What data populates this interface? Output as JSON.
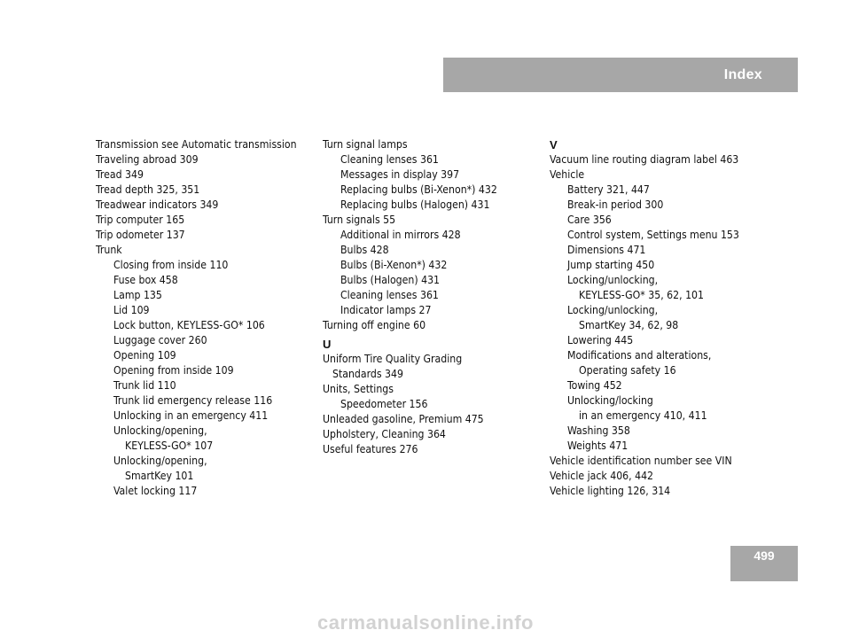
{
  "header": {
    "title": "Index"
  },
  "page_number": "499",
  "columns": [
    [
      {
        "t": "Transmission see Automatic transmission",
        "l": 0
      },
      {
        "t": "Traveling abroad    309",
        "l": 0
      },
      {
        "t": "Tread    349",
        "l": 0
      },
      {
        "t": "Tread depth    325, 351",
        "l": 0
      },
      {
        "t": "Treadwear indicators    349",
        "l": 0
      },
      {
        "t": "Trip computer    165",
        "l": 0
      },
      {
        "t": "Trip odometer    137",
        "l": 0
      },
      {
        "t": "Trunk",
        "l": 0
      },
      {
        "t": "Closing from inside    110",
        "l": 1
      },
      {
        "t": "Fuse box    458",
        "l": 1
      },
      {
        "t": "Lamp    135",
        "l": 1
      },
      {
        "t": "Lid    109",
        "l": 1
      },
      {
        "t": "Lock button, KEYLESS-GO*    106",
        "l": 1
      },
      {
        "t": "Luggage cover    260",
        "l": 1
      },
      {
        "t": "Opening    109",
        "l": 1
      },
      {
        "t": "Opening from inside    109",
        "l": 1
      },
      {
        "t": "Trunk lid    110",
        "l": 1
      },
      {
        "t": "Trunk lid emergency release    116",
        "l": 1
      },
      {
        "t": "Unlocking in an emergency    411",
        "l": 1
      },
      {
        "t": "Unlocking/opening,",
        "l": 1
      },
      {
        "t": "KEYLESS-GO*    107",
        "l": 2
      },
      {
        "t": "Unlocking/opening,",
        "l": 1
      },
      {
        "t": "SmartKey    101",
        "l": 2
      },
      {
        "t": "Valet locking    117",
        "l": 1
      }
    ],
    [
      {
        "t": "Turn signal lamps",
        "l": 0
      },
      {
        "t": "Cleaning lenses    361",
        "l": 1
      },
      {
        "t": "Messages in display    397",
        "l": 1
      },
      {
        "t": "Replacing bulbs (Bi-Xenon*)    432",
        "l": 1
      },
      {
        "t": "Replacing bulbs (Halogen)    431",
        "l": 1
      },
      {
        "t": "Turn signals    55",
        "l": 0
      },
      {
        "t": "Additional in mirrors    428",
        "l": 1
      },
      {
        "t": "Bulbs    428",
        "l": 1
      },
      {
        "t": "Bulbs (Bi-Xenon*)    432",
        "l": 1
      },
      {
        "t": "Bulbs (Halogen)    431",
        "l": 1
      },
      {
        "t": "Cleaning lenses    361",
        "l": 1
      },
      {
        "t": "Indicator lamps    27",
        "l": 1
      },
      {
        "t": "Turning off engine    60",
        "l": 0
      },
      {
        "t": "U",
        "l": "letter"
      },
      {
        "t": "Uniform Tire Quality Grading",
        "l": 0
      },
      {
        "t": "Standards    349",
        "l": "cont"
      },
      {
        "t": "Units, Settings",
        "l": 0
      },
      {
        "t": "Speedometer    156",
        "l": 1
      },
      {
        "t": "Unleaded gasoline, Premium    475",
        "l": 0
      },
      {
        "t": "Upholstery, Cleaning    364",
        "l": 0
      },
      {
        "t": "Useful features    276",
        "l": 0
      }
    ],
    [
      {
        "t": "V",
        "l": "letter"
      },
      {
        "t": "Vacuum line routing diagram label    463",
        "l": 0
      },
      {
        "t": "Vehicle",
        "l": 0
      },
      {
        "t": "Battery    321, 447",
        "l": 1
      },
      {
        "t": "Break-in period    300",
        "l": 1
      },
      {
        "t": "Care    356",
        "l": 1
      },
      {
        "t": "Control system, Settings menu    153",
        "l": 1
      },
      {
        "t": "Dimensions    471",
        "l": 1
      },
      {
        "t": "Jump starting    450",
        "l": 1
      },
      {
        "t": "Locking/unlocking,",
        "l": 1
      },
      {
        "t": "KEYLESS-GO*    35, 62, 101",
        "l": 2
      },
      {
        "t": "Locking/unlocking,",
        "l": 1
      },
      {
        "t": "SmartKey    34, 62, 98",
        "l": 2
      },
      {
        "t": "Lowering    445",
        "l": 1
      },
      {
        "t": "Modifications and alterations,",
        "l": 1
      },
      {
        "t": "Operating safety    16",
        "l": 2
      },
      {
        "t": "Towing    452",
        "l": 1
      },
      {
        "t": "Unlocking/locking",
        "l": 1
      },
      {
        "t": "in an emergency    410, 411",
        "l": 2
      },
      {
        "t": "Washing    358",
        "l": 1
      },
      {
        "t": "Weights    471",
        "l": 1
      },
      {
        "t": "Vehicle identification number see VIN",
        "l": 0
      },
      {
        "t": "Vehicle jack    406, 442",
        "l": 0
      },
      {
        "t": "Vehicle lighting    126, 314",
        "l": 0
      }
    ]
  ],
  "watermark": "carmanualsonline.info"
}
